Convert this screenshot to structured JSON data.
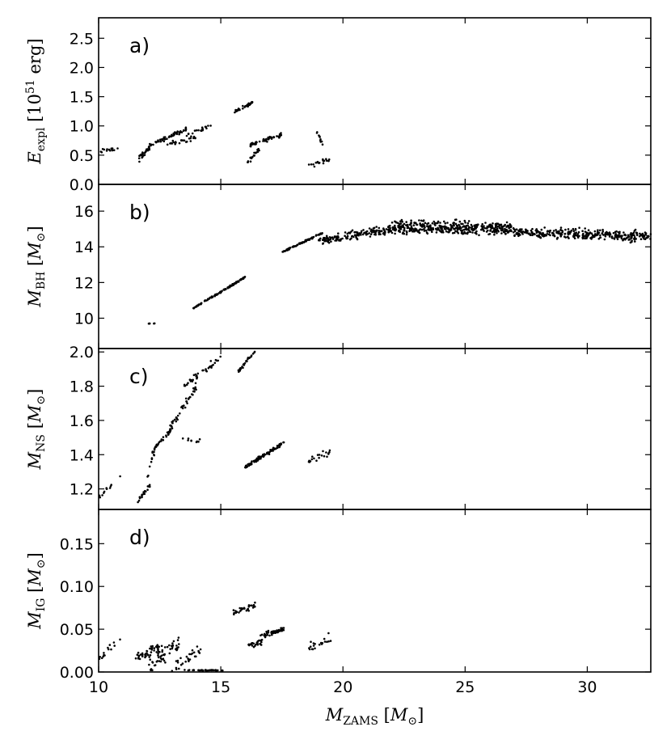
{
  "x_axis": {
    "label": "M_ZAMS [M_⊙]",
    "label_main": "M",
    "label_sub": "ZAMS",
    "label_unit_open": " [",
    "label_unit_main": "M",
    "label_unit_sub": "⊙",
    "label_unit_close": "]",
    "xlim": [
      10,
      32.6
    ],
    "ticks": [
      10,
      15,
      20,
      25,
      30
    ],
    "tick_labels": [
      "10",
      "15",
      "20",
      "25",
      "30"
    ]
  },
  "chart_data": [
    {
      "type": "scatter",
      "panel": "a)",
      "ylabel": "E_expl [10^51 erg]",
      "ylabel_parts": {
        "main": "E",
        "sub": "expl",
        "mid": " [10",
        "sup": "51",
        "tail": " erg]"
      },
      "ylim": [
        0.0,
        2.85
      ],
      "yticks": [
        0.0,
        0.5,
        1.0,
        1.5,
        2.0,
        2.5
      ],
      "ytick_labels": [
        "0.0",
        "0.5",
        "1.0",
        "1.5",
        "2.0",
        "2.5"
      ],
      "marker_color": "#000000",
      "segments": [
        {
          "x0": 10.0,
          "x1": 10.8,
          "y0": 0.55,
          "y1": 0.62,
          "spread": 0.06,
          "n": 14
        },
        {
          "x0": 11.6,
          "x1": 12.3,
          "y0": 0.42,
          "y1": 0.72,
          "spread": 0.08,
          "n": 30
        },
        {
          "x0": 12.3,
          "x1": 13.6,
          "y0": 0.7,
          "y1": 0.95,
          "spread": 0.05,
          "n": 45
        },
        {
          "x0": 12.8,
          "x1": 14.0,
          "y0": 0.7,
          "y1": 0.8,
          "spread": 0.06,
          "n": 25
        },
        {
          "x0": 13.6,
          "x1": 14.7,
          "y0": 0.85,
          "y1": 1.02,
          "spread": 0.05,
          "n": 18
        },
        {
          "x0": 15.5,
          "x1": 16.3,
          "y0": 1.22,
          "y1": 1.4,
          "spread": 0.04,
          "n": 32
        },
        {
          "x0": 16.1,
          "x1": 16.6,
          "y0": 0.4,
          "y1": 0.6,
          "spread": 0.07,
          "n": 22
        },
        {
          "x0": 16.2,
          "x1": 17.5,
          "y0": 0.68,
          "y1": 0.85,
          "spread": 0.05,
          "n": 55
        },
        {
          "x0": 18.6,
          "x1": 19.5,
          "y0": 0.3,
          "y1": 0.45,
          "spread": 0.07,
          "n": 18
        },
        {
          "x0": 18.9,
          "x1": 19.3,
          "y0": 0.95,
          "y1": 0.55,
          "spread": 0.06,
          "n": 10
        }
      ]
    },
    {
      "type": "scatter",
      "panel": "b)",
      "ylabel": "M_BH [M_⊙]",
      "ylabel_parts": {
        "main": "M",
        "sub": "BH",
        "mid": " [",
        "unit_main": "M",
        "unit_sub": "⊙",
        "tail": "]"
      },
      "ylim": [
        8.3,
        17.5
      ],
      "yticks": [
        10,
        12,
        14,
        16
      ],
      "ytick_labels": [
        "10",
        "12",
        "14",
        "16"
      ],
      "marker_color": "#000000",
      "segments": [
        {
          "x0": 12.0,
          "x1": 12.3,
          "y0": 9.7,
          "y1": 9.7,
          "spread": 0.02,
          "n": 5
        },
        {
          "x0": 13.8,
          "x1": 16.0,
          "y0": 10.5,
          "y1": 12.3,
          "spread": 0.06,
          "n": 110
        },
        {
          "x0": 17.5,
          "x1": 19.2,
          "y0": 13.7,
          "y1": 14.8,
          "spread": 0.06,
          "n": 80
        },
        {
          "x0": 19.0,
          "x1": 22.0,
          "y0": 14.3,
          "y1": 15.0,
          "spread": 0.35,
          "n": 160
        },
        {
          "x0": 22.0,
          "x1": 27.0,
          "y0": 15.1,
          "y1": 15.0,
          "spread": 0.55,
          "n": 420
        },
        {
          "x0": 27.0,
          "x1": 32.6,
          "y0": 14.8,
          "y1": 14.6,
          "spread": 0.45,
          "n": 330
        }
      ]
    },
    {
      "type": "scatter",
      "panel": "c)",
      "ylabel": "M_NS [M_⊙]",
      "ylabel_parts": {
        "main": "M",
        "sub": "NS",
        "mid": " [",
        "unit_main": "M",
        "unit_sub": "⊙",
        "tail": "]"
      },
      "ylim": [
        1.08,
        2.02
      ],
      "yticks": [
        1.2,
        1.4,
        1.6,
        1.8,
        2.0
      ],
      "ytick_labels": [
        "1.2",
        "1.4",
        "1.6",
        "1.8",
        "2.0"
      ],
      "marker_color": "#000000",
      "segments": [
        {
          "x0": 10.0,
          "x1": 10.9,
          "y0": 1.15,
          "y1": 1.28,
          "spread": 0.02,
          "n": 12
        },
        {
          "x0": 11.6,
          "x1": 12.1,
          "y0": 1.13,
          "y1": 1.22,
          "spread": 0.02,
          "n": 20
        },
        {
          "x0": 12.0,
          "x1": 12.3,
          "y0": 1.28,
          "y1": 1.42,
          "spread": 0.03,
          "n": 8
        },
        {
          "x0": 12.2,
          "x1": 13.0,
          "y0": 1.42,
          "y1": 1.55,
          "spread": 0.02,
          "n": 40
        },
        {
          "x0": 12.9,
          "x1": 14.0,
          "y0": 1.55,
          "y1": 1.8,
          "spread": 0.03,
          "n": 45
        },
        {
          "x0": 13.5,
          "x1": 15.0,
          "y0": 1.8,
          "y1": 1.97,
          "spread": 0.03,
          "n": 35
        },
        {
          "x0": 13.3,
          "x1": 14.2,
          "y0": 1.48,
          "y1": 1.48,
          "spread": 0.02,
          "n": 10
        },
        {
          "x0": 15.7,
          "x1": 16.4,
          "y0": 1.88,
          "y1": 2.01,
          "spread": 0.015,
          "n": 30
        },
        {
          "x0": 16.0,
          "x1": 17.6,
          "y0": 1.33,
          "y1": 1.47,
          "spread": 0.015,
          "n": 90
        },
        {
          "x0": 18.6,
          "x1": 19.5,
          "y0": 1.36,
          "y1": 1.42,
          "spread": 0.03,
          "n": 20
        }
      ]
    },
    {
      "type": "scatter",
      "panel": "d)",
      "ylabel": "M_IG [M_⊙]",
      "ylabel_parts": {
        "main": "M",
        "sub": "IG",
        "mid": " [",
        "unit_main": "M",
        "unit_sub": "⊙",
        "tail": "]"
      },
      "ylim": [
        0.0,
        0.19
      ],
      "yticks": [
        0.0,
        0.05,
        0.1,
        0.15
      ],
      "ytick_labels": [
        "0.00",
        "0.05",
        "0.10",
        "0.15"
      ],
      "marker_color": "#000000",
      "segments": [
        {
          "x0": 10.0,
          "x1": 10.9,
          "y0": 0.015,
          "y1": 0.04,
          "spread": 0.006,
          "n": 14
        },
        {
          "x0": 11.5,
          "x1": 12.6,
          "y0": 0.018,
          "y1": 0.03,
          "spread": 0.01,
          "n": 45
        },
        {
          "x0": 12.0,
          "x1": 13.3,
          "y0": 0.005,
          "y1": 0.035,
          "spread": 0.014,
          "n": 50
        },
        {
          "x0": 13.0,
          "x1": 14.2,
          "y0": 0.002,
          "y1": 0.028,
          "spread": 0.01,
          "n": 30
        },
        {
          "x0": 13.5,
          "x1": 15.2,
          "y0": 0.002,
          "y1": 0.002,
          "spread": 0.001,
          "n": 35
        },
        {
          "x0": 15.5,
          "x1": 16.4,
          "y0": 0.068,
          "y1": 0.078,
          "spread": 0.005,
          "n": 30
        },
        {
          "x0": 16.1,
          "x1": 16.8,
          "y0": 0.03,
          "y1": 0.036,
          "spread": 0.005,
          "n": 25
        },
        {
          "x0": 16.6,
          "x1": 17.6,
          "y0": 0.042,
          "y1": 0.05,
          "spread": 0.004,
          "n": 45
        },
        {
          "x0": 18.6,
          "x1": 19.5,
          "y0": 0.028,
          "y1": 0.04,
          "spread": 0.008,
          "n": 20
        }
      ]
    }
  ]
}
